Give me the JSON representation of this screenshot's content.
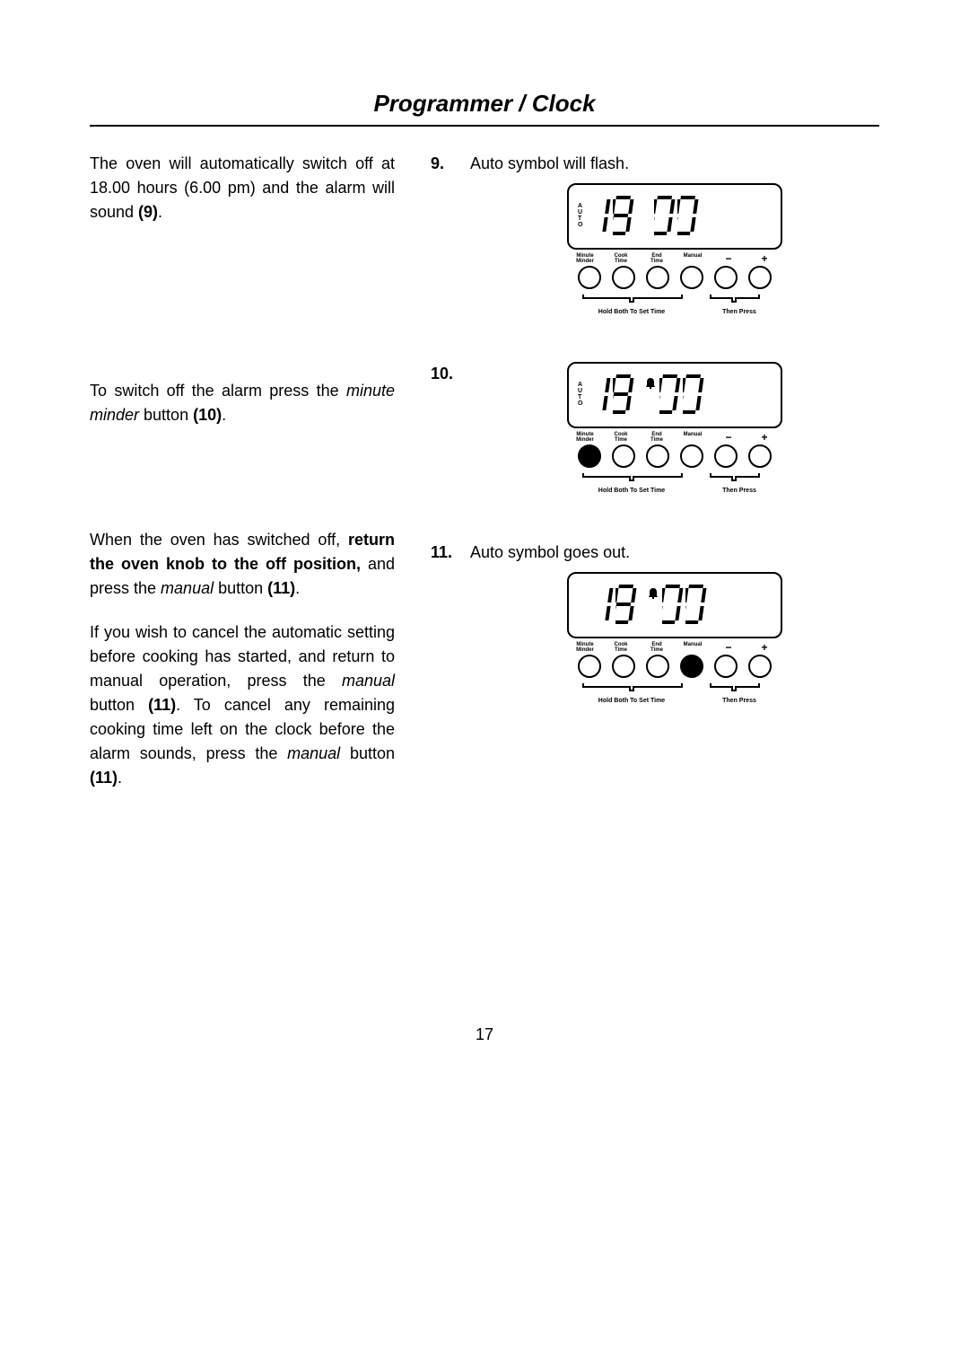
{
  "title": "Programmer / Clock",
  "page_number": "17",
  "left_column": {
    "para1_prefix": "The oven will automatically switch off at 18.00 hours (6.00 pm) and the alarm will sound ",
    "para1_bold": "(9)",
    "para1_suffix": ".",
    "para2_prefix": "To switch off the alarm press the ",
    "para2_ital": "minute minder",
    "para2_mid": " button ",
    "para2_bold": "(10)",
    "para2_suffix": ".",
    "para3a": "When the oven has switched off, ",
    "para3_bold": "return the oven knob to the off position,",
    "para3b": " and press the ",
    "para3_ital": "manual",
    "para3c": " button ",
    "para3_bold2": "(11)",
    "para3_suffix": ".",
    "para4a": "If you wish to cancel the automatic setting before cooking has started, and return to manual operation, press the  ",
    "para4_ital1": "manual",
    "para4b": " button ",
    "para4_bold1": "(11)",
    "para4c": ".  To cancel any remaining cooking time left on the clock before the alarm sounds, press the ",
    "para4_ital2": "manual",
    "para4d": " button ",
    "para4_bold2": "(11)",
    "para4_suffix": "."
  },
  "right_column": {
    "step9_num": "9.",
    "step9_text": "Auto symbol will flash.",
    "step10_num": "10.",
    "step11_num": "11.",
    "step11_text": "Auto symbol goes out."
  },
  "diagram": {
    "auto_letters": [
      "A",
      "U",
      "T",
      "O"
    ],
    "time_display": "18.00",
    "button_labels_top": [
      "Minute",
      "Cook",
      "End",
      "Manual"
    ],
    "button_labels_bottom": [
      "Minder",
      "Time",
      "Time",
      ""
    ],
    "minus": "−",
    "plus": "+",
    "caption_left": "Hold Both To Set Time",
    "caption_right": "Then Press",
    "colors": {
      "stroke": "#000000",
      "bg": "#ffffff",
      "text": "#000000"
    },
    "figures": [
      {
        "auto_visible": true,
        "bell_visible": false,
        "highlighted_button": null
      },
      {
        "auto_visible": true,
        "bell_visible": true,
        "highlighted_button": 0
      },
      {
        "auto_visible": false,
        "bell_visible": true,
        "highlighted_button": 3
      }
    ]
  }
}
